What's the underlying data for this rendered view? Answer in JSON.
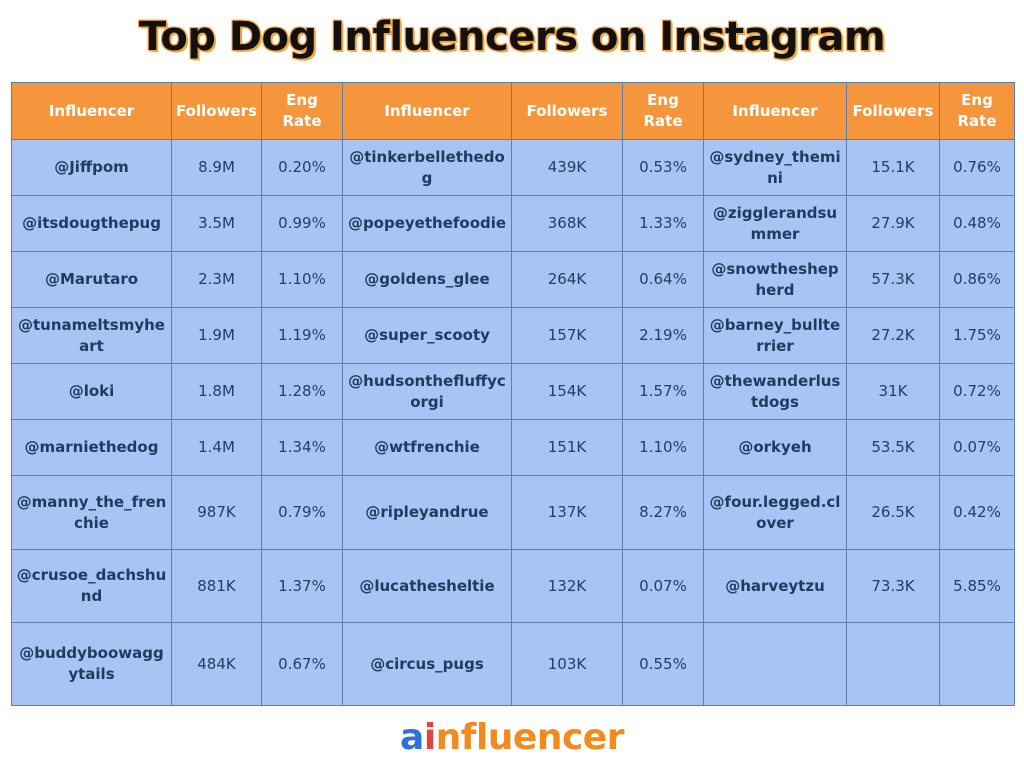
{
  "title": "Top Dog Influencers on Instagram",
  "chart_data": {
    "type": "table",
    "title": "Top Dog Influencers on Instagram",
    "column_groups": [
      {
        "columns": [
          "Influencer",
          "Followers",
          "Eng Rate"
        ]
      },
      {
        "columns": [
          "Influencer",
          "Followers",
          "Eng Rate"
        ]
      },
      {
        "columns": [
          "Influencer",
          "Followers",
          "Eng Rate"
        ]
      }
    ],
    "headers": {
      "influencer": "Influencer",
      "followers": "Followers",
      "eng_rate": "Eng Rate"
    },
    "rows": [
      [
        {
          "handle": "@Jiffpom",
          "followers": "8.9M",
          "eng_rate": "0.20%"
        },
        {
          "handle": "@tinkerbellethedog",
          "followers": "439K",
          "eng_rate": "0.53%"
        },
        {
          "handle": "@sydney_themini",
          "followers": "15.1K",
          "eng_rate": "0.76%"
        }
      ],
      [
        {
          "handle": "@itsdougthepug",
          "followers": "3.5M",
          "eng_rate": "0.99%"
        },
        {
          "handle": "@popeyethefoodie",
          "followers": "368K",
          "eng_rate": "1.33%"
        },
        {
          "handle": "@zigglerandsummer",
          "followers": "27.9K",
          "eng_rate": "0.48%"
        }
      ],
      [
        {
          "handle": "@Marutaro",
          "followers": "2.3M",
          "eng_rate": "1.10%"
        },
        {
          "handle": "@goldens_glee",
          "followers": "264K",
          "eng_rate": "0.64%"
        },
        {
          "handle": "@snowtheshepherd",
          "followers": "57.3K",
          "eng_rate": "0.86%"
        }
      ],
      [
        {
          "handle": "@tunameltsmyheart",
          "followers": "1.9M",
          "eng_rate": "1.19%"
        },
        {
          "handle": "@super_scooty",
          "followers": "157K",
          "eng_rate": "2.19%"
        },
        {
          "handle": "@barney_bullterrier",
          "followers": "27.2K",
          "eng_rate": "1.75%"
        }
      ],
      [
        {
          "handle": "@loki",
          "followers": "1.8M",
          "eng_rate": "1.28%"
        },
        {
          "handle": "@hudsonthefluffycorgi",
          "followers": "154K",
          "eng_rate": "1.57%"
        },
        {
          "handle": "@thewanderlustdogs",
          "followers": "31K",
          "eng_rate": "0.72%"
        }
      ],
      [
        {
          "handle": "@marniethedog",
          "followers": "1.4M",
          "eng_rate": "1.34%"
        },
        {
          "handle": "@wtfrenchie",
          "followers": "151K",
          "eng_rate": "1.10%"
        },
        {
          "handle": "@orkyeh",
          "followers": "53.5K",
          "eng_rate": "0.07%"
        }
      ],
      [
        {
          "handle": "@manny_the_frenchie",
          "followers": "987K",
          "eng_rate": "0.79%"
        },
        {
          "handle": "@ripleyandrue",
          "followers": "137K",
          "eng_rate": "8.27%"
        },
        {
          "handle": "@four.legged.clover",
          "followers": "26.5K",
          "eng_rate": "0.42%"
        }
      ],
      [
        {
          "handle": "@crusoe_dachshund",
          "followers": "881K",
          "eng_rate": "1.37%"
        },
        {
          "handle": "@lucathesheltie",
          "followers": "132K",
          "eng_rate": "0.07%"
        },
        {
          "handle": "@harveytzu",
          "followers": "73.3K",
          "eng_rate": "5.85%"
        }
      ],
      [
        {
          "handle": "@buddyboowaggytails",
          "followers": "484K",
          "eng_rate": "0.67%"
        },
        {
          "handle": "@circus_pugs",
          "followers": "103K",
          "eng_rate": "0.55%"
        },
        {
          "handle": "",
          "followers": "",
          "eng_rate": ""
        }
      ]
    ]
  },
  "logo": {
    "part_a": "a",
    "part_i": "i",
    "part_rest": "nfluencer"
  },
  "colors": {
    "header_bg": "#f6963c",
    "cell_bg": "#a8c4f4",
    "cell_text": "#1f3f63",
    "title_outline": "#f6a53d"
  }
}
